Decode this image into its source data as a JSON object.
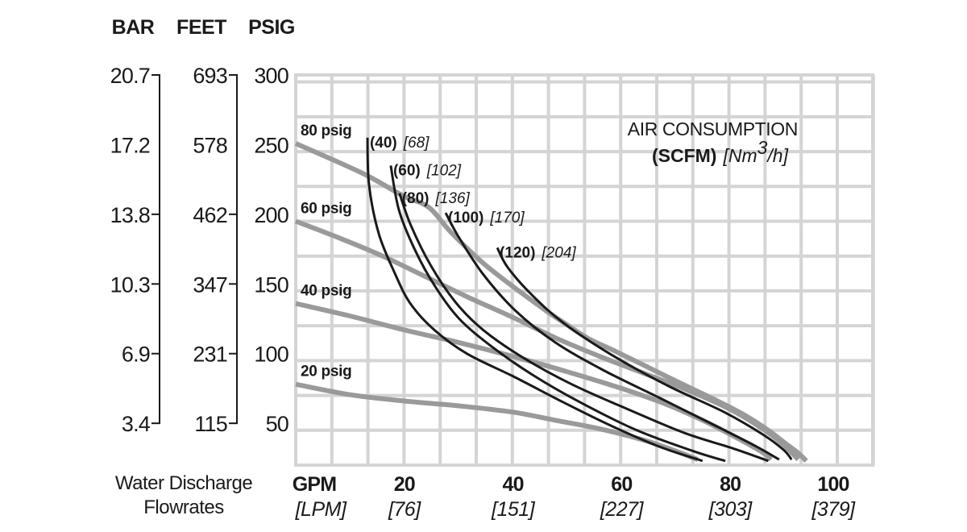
{
  "chart_data": {
    "type": "line",
    "title": "AIR CONSUMPTION",
    "subtitle": "(SCFM) [Nm³/h]",
    "subtitle_bold": "(SCFM)",
    "subtitle_italic": "[Nm",
    "subtitle_sup": "3",
    "subtitle_italic_end": "/h]",
    "xlabel": "Water Discharge Flowrates",
    "xlabel_lines": [
      "Water Discharge",
      "Flowrates"
    ],
    "x_unit_primary": "GPM",
    "x_unit_secondary": "[LPM]",
    "xlim": [
      0,
      100
    ],
    "ylim": [
      20,
      300
    ],
    "grid": true,
    "x_grid_step": 6.667,
    "y_grid_step": 25,
    "x_ticks": [
      {
        "gpm": 20,
        "label": "20",
        "lpm": "[76]"
      },
      {
        "gpm": 40,
        "label": "40",
        "lpm": "[151]"
      },
      {
        "gpm": 60,
        "label": "60",
        "lpm": "[227]"
      },
      {
        "gpm": 80,
        "label": "80",
        "lpm": "[303]"
      },
      {
        "gpm": 100,
        "label": "100",
        "lpm": "[379]"
      }
    ],
    "y_axes": [
      {
        "name": "BAR",
        "ticks": [
          {
            "psig": 300,
            "label": "20.7",
            "mark": true
          },
          {
            "psig": 250,
            "label": "17.2",
            "mark": false
          },
          {
            "psig": 200,
            "label": "13.8",
            "mark": true
          },
          {
            "psig": 150,
            "label": "10.3",
            "mark": true
          },
          {
            "psig": 100,
            "label": "6.9",
            "mark": true
          },
          {
            "psig": 50,
            "label": "3.4",
            "mark": true
          }
        ]
      },
      {
        "name": "FEET",
        "ticks": [
          {
            "psig": 300,
            "label": "693",
            "mark": true
          },
          {
            "psig": 250,
            "label": "578",
            "mark": false
          },
          {
            "psig": 200,
            "label": "462",
            "mark": true
          },
          {
            "psig": 150,
            "label": "347",
            "mark": true
          },
          {
            "psig": 100,
            "label": "231",
            "mark": true
          },
          {
            "psig": 50,
            "label": "115",
            "mark": true
          }
        ]
      },
      {
        "name": "PSIG",
        "ticks": [
          {
            "psig": 300,
            "label": "300"
          },
          {
            "psig": 250,
            "label": "250"
          },
          {
            "psig": 200,
            "label": "200"
          },
          {
            "psig": 150,
            "label": "150"
          },
          {
            "psig": 100,
            "label": "100"
          },
          {
            "psig": 50,
            "label": "50"
          }
        ]
      }
    ],
    "colors": {
      "air_pressure": "#9a9a9a",
      "air_consumption": "#1a1a1a",
      "grid": "#d4d4d4"
    },
    "series": [
      {
        "name": "80 psig",
        "kind": "air_pressure",
        "label": "80 psig",
        "points": [
          [
            0,
            250.8
          ],
          [
            12.3,
            229.4
          ],
          [
            19.7,
            213.4
          ],
          [
            24.5,
            205
          ],
          [
            28.6,
            187
          ],
          [
            34.5,
            165
          ],
          [
            40.4,
            147
          ],
          [
            46.4,
            130
          ],
          [
            49.3,
            122.4
          ],
          [
            53.8,
            111
          ],
          [
            58.7,
            102
          ],
          [
            64.7,
            90.5
          ],
          [
            70.7,
            79
          ],
          [
            76.6,
            68
          ],
          [
            82.6,
            56
          ],
          [
            87.0,
            45
          ],
          [
            90.0,
            36
          ],
          [
            92.4,
            29
          ],
          [
            94.0,
            23
          ]
        ]
      },
      {
        "name": "60 psig",
        "kind": "air_pressure",
        "label": "60 psig",
        "points": [
          [
            0,
            195
          ],
          [
            8,
            183
          ],
          [
            16,
            170
          ],
          [
            24,
            155
          ],
          [
            32,
            140
          ],
          [
            40,
            126
          ],
          [
            48,
            111
          ],
          [
            56,
            98
          ],
          [
            64,
            86
          ],
          [
            72,
            74
          ],
          [
            80,
            60
          ],
          [
            86,
            46
          ],
          [
            90,
            34
          ],
          [
            92.5,
            24
          ]
        ]
      },
      {
        "name": "40 psig",
        "kind": "air_pressure",
        "label": "40 psig",
        "points": [
          [
            0,
            136
          ],
          [
            10,
            127
          ],
          [
            20,
            117
          ],
          [
            30,
            108
          ],
          [
            40,
            98
          ],
          [
            50,
            87
          ],
          [
            60,
            75
          ],
          [
            68,
            64
          ],
          [
            75,
            52
          ],
          [
            81,
            40
          ],
          [
            86,
            29
          ],
          [
            87.5,
            24
          ]
        ]
      },
      {
        "name": "20 psig",
        "kind": "air_pressure",
        "label": "20 psig",
        "points": [
          [
            0,
            78
          ],
          [
            10,
            70.5
          ],
          [
            20,
            66
          ],
          [
            30,
            62.5
          ],
          [
            40,
            58
          ],
          [
            48,
            52
          ],
          [
            56,
            46
          ],
          [
            64,
            38
          ],
          [
            70,
            30
          ],
          [
            74,
            24
          ]
        ]
      },
      {
        "name": "40 SCFM",
        "kind": "air_consumption",
        "label": "(40)",
        "label_metric": "[68]",
        "points": [
          [
            13.2,
            255
          ],
          [
            13.5,
            221
          ],
          [
            15.3,
            186
          ],
          [
            18.2,
            158
          ],
          [
            21.1,
            136
          ],
          [
            25.5,
            117
          ],
          [
            31.5,
            100
          ],
          [
            40.4,
            83
          ],
          [
            49.3,
            65
          ],
          [
            58.2,
            48
          ],
          [
            67.1,
            33
          ],
          [
            74.9,
            23
          ]
        ]
      },
      {
        "name": "60 SCFM",
        "kind": "air_consumption",
        "label": "(60)",
        "label_metric": "[102]",
        "points": [
          [
            17.5,
            235
          ],
          [
            19.0,
            203
          ],
          [
            22.0,
            174
          ],
          [
            25.7,
            148
          ],
          [
            30.1,
            125
          ],
          [
            36.1,
            105
          ],
          [
            43.5,
            85
          ],
          [
            52.4,
            65
          ],
          [
            62.8,
            45
          ],
          [
            73.2,
            30
          ],
          [
            79.1,
            23
          ]
        ]
      },
      {
        "name": "80 SCFM",
        "kind": "air_consumption",
        "label": "(80)",
        "label_metric": "[136]",
        "points": [
          [
            19.1,
            215
          ],
          [
            21.2,
            192
          ],
          [
            24.9,
            163
          ],
          [
            29.4,
            137
          ],
          [
            34.5,
            117
          ],
          [
            41.9,
            97
          ],
          [
            50.8,
            78
          ],
          [
            61.2,
            60
          ],
          [
            71.6,
            43
          ],
          [
            80.5,
            32
          ],
          [
            87.0,
            23
          ]
        ]
      },
      {
        "name": "100 SCFM",
        "kind": "air_consumption",
        "label": "(100)",
        "label_metric": "[170]",
        "points": [
          [
            27.6,
            201
          ],
          [
            30.1,
            183
          ],
          [
            34.5,
            157
          ],
          [
            40.4,
            131
          ],
          [
            47.8,
            108
          ],
          [
            56.7,
            88
          ],
          [
            67.1,
            68
          ],
          [
            77.4,
            48
          ],
          [
            84.5,
            34
          ],
          [
            89.0,
            24
          ]
        ]
      },
      {
        "name": "120 SCFM",
        "kind": "air_consumption",
        "label": "(120)",
        "label_metric": "[204]",
        "points": [
          [
            37.1,
            176
          ],
          [
            39.0,
            162
          ],
          [
            43.5,
            142
          ],
          [
            49.3,
            122
          ],
          [
            58.2,
            99
          ],
          [
            68.5,
            77
          ],
          [
            78.9,
            58
          ],
          [
            86.0,
            42
          ],
          [
            89.8,
            31
          ],
          [
            91.3,
            24
          ]
        ]
      }
    ]
  }
}
